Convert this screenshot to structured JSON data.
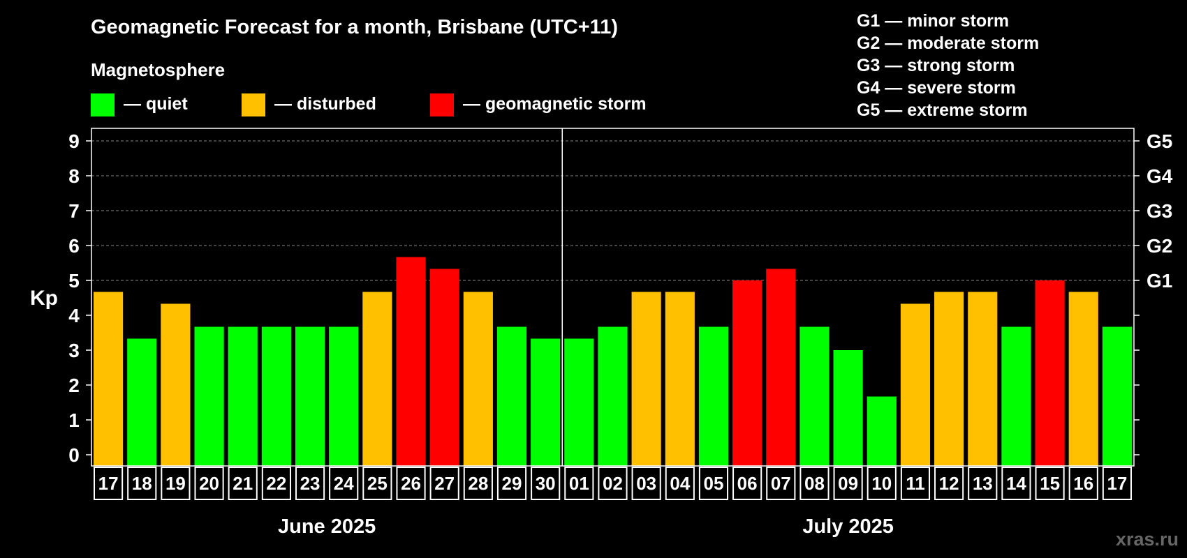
{
  "chart_data": {
    "type": "bar",
    "title": "Geomagnetic Forecast for a month, Brisbane (UTC+11)",
    "legend_title": "Magnetosphere",
    "legend": [
      {
        "label": "— quiet",
        "color": "#00ff00"
      },
      {
        "label": "— disturbed",
        "color": "#ffc000"
      },
      {
        "label": "— geomagnetic storm",
        "color": "#ff0000"
      }
    ],
    "storm_scale": [
      "G1 — minor storm",
      "G2 — moderate storm",
      "G3 — strong storm",
      "G4 — severe storm",
      "G5 — extreme storm"
    ],
    "ylabel": "Kp",
    "ylim": [
      0,
      9
    ],
    "yticks": [
      "0",
      "1",
      "2",
      "3",
      "4",
      "5",
      "6",
      "7",
      "8",
      "9"
    ],
    "right_ticks": [
      {
        "kp": 5,
        "label": "G1"
      },
      {
        "kp": 6,
        "label": "G2"
      },
      {
        "kp": 7,
        "label": "G3"
      },
      {
        "kp": 8,
        "label": "G4"
      },
      {
        "kp": 9,
        "label": "G5"
      }
    ],
    "categories": [
      "17",
      "18",
      "19",
      "20",
      "21",
      "22",
      "23",
      "24",
      "25",
      "26",
      "27",
      "28",
      "29",
      "30",
      "01",
      "02",
      "03",
      "04",
      "05",
      "06",
      "07",
      "08",
      "09",
      "10",
      "11",
      "12",
      "13",
      "14",
      "15",
      "16",
      "17"
    ],
    "values": [
      4.67,
      3.33,
      4.33,
      3.67,
      3.67,
      3.67,
      3.67,
      3.67,
      4.67,
      5.67,
      5.33,
      4.67,
      3.67,
      3.33,
      3.33,
      3.67,
      4.67,
      4.67,
      3.67,
      5.0,
      5.33,
      3.67,
      3.0,
      1.67,
      4.33,
      4.67,
      4.67,
      3.67,
      5.0,
      4.67,
      3.67
    ],
    "levels": [
      "disturbed",
      "quiet",
      "disturbed",
      "quiet",
      "quiet",
      "quiet",
      "quiet",
      "quiet",
      "disturbed",
      "storm",
      "storm",
      "disturbed",
      "quiet",
      "quiet",
      "quiet",
      "quiet",
      "disturbed",
      "disturbed",
      "quiet",
      "storm",
      "storm",
      "quiet",
      "quiet",
      "quiet",
      "disturbed",
      "disturbed",
      "disturbed",
      "quiet",
      "storm",
      "disturbed",
      "quiet"
    ],
    "level_colors": {
      "quiet": "#00ff00",
      "disturbed": "#ffc000",
      "storm": "#ff0000"
    },
    "months": [
      {
        "label": "June 2025",
        "count": 14
      },
      {
        "label": "July 2025",
        "count": 17
      }
    ],
    "watermark": "xras.ru",
    "grid": true
  }
}
